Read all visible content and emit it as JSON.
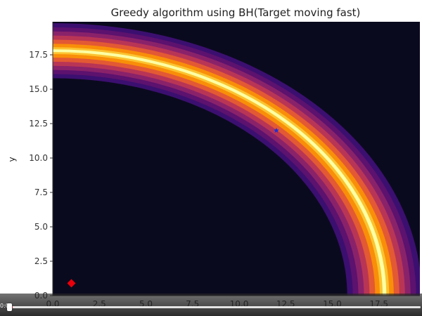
{
  "chart_data": {
    "type": "heatmap",
    "title": "Greedy algorithm using BH(Target moving fast)",
    "xlabel": "",
    "ylabel": "y",
    "xlim": [
      0,
      19.7
    ],
    "ylim": [
      0,
      19.9
    ],
    "x_ticks": [
      "0.0",
      "2.5",
      "5.0",
      "7.5",
      "10.0",
      "12.5",
      "15.0",
      "17.5"
    ],
    "y_ticks": [
      "0.0",
      "2.5",
      "5.0",
      "7.5",
      "10.0",
      "12.5",
      "15.0",
      "17.5"
    ],
    "grid": false,
    "colormap": "inferno",
    "field": {
      "description_of_values": "ring-shaped probability field centered at origin",
      "ring_radius": 17.8,
      "ring_levels": [
        {
          "radius_range": [
            15.8,
            19.8
          ],
          "color": "#3b0f6f"
        },
        {
          "radius_range": [
            16.1,
            19.5
          ],
          "color": "#5c126e"
        },
        {
          "radius_range": [
            16.4,
            19.2
          ],
          "color": "#8a226a"
        },
        {
          "radius_range": [
            16.7,
            18.9
          ],
          "color": "#b93556"
        },
        {
          "radius_range": [
            17.0,
            18.6
          ],
          "color": "#e35933"
        },
        {
          "radius_range": [
            17.3,
            18.3
          ],
          "color": "#f98e09"
        },
        {
          "radius_range": [
            17.55,
            18.05
          ],
          "color": "#fbc330"
        },
        {
          "radius_range": [
            17.7,
            17.9
          ],
          "color": "#fcffa4"
        }
      ],
      "background_color": "#0a0a1e"
    },
    "markers": [
      {
        "name": "",
        "x": 1.0,
        "y": 0.9,
        "shape": "diamond",
        "color": "#e8000b"
      },
      {
        "name": "",
        "x": 12.0,
        "y": 12.0,
        "shape": "star",
        "color": "#1f2fd6"
      }
    ]
  },
  "player": {
    "time_text": "0:0",
    "progress": 0.01
  }
}
